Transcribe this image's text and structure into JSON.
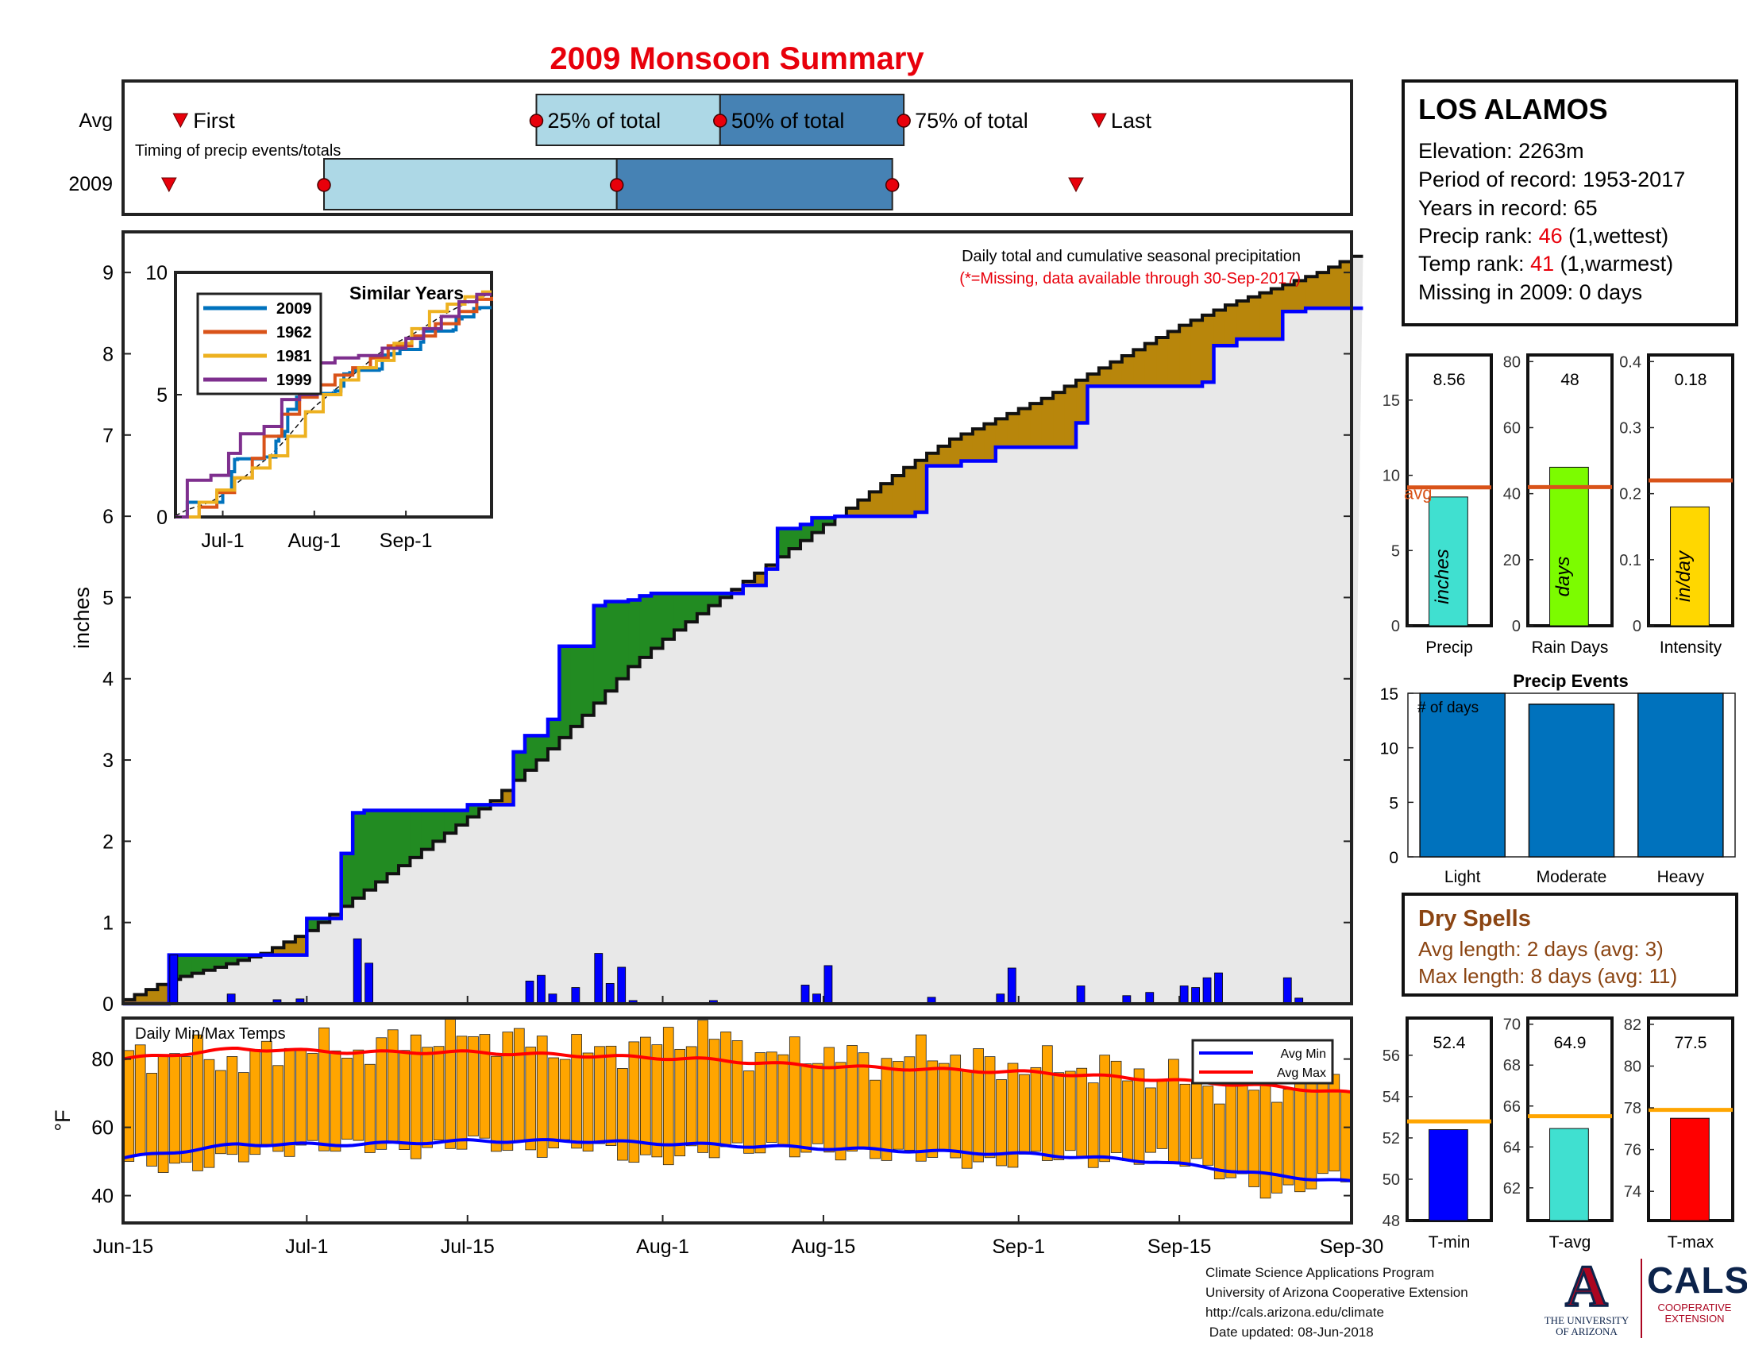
{
  "title": "2009 Monsoon Summary",
  "station": {
    "name": "LOS ALAMOS",
    "elevation": "Elevation: 2263m",
    "period": "Period of record: 1953-2017",
    "years": "Years in record: 65",
    "precip_rank_label": "Precip rank:",
    "precip_rank_value": "46",
    "precip_rank_note": "(1,wettest)",
    "temp_rank_label": "Temp rank:",
    "temp_rank_value": "41",
    "temp_rank_note": "(1,warmest)",
    "missing": "Missing in 2009: 0 days"
  },
  "timing": {
    "caption": "Timing of precip events/totals",
    "row_labels": [
      "Avg",
      "2009"
    ],
    "first_label": "First",
    "last_label": "Last",
    "q25_label": "25% of total",
    "q50_label": "50% of total",
    "q75_label": "75% of total",
    "avg": {
      "first": 5,
      "q25": 36,
      "q50": 52,
      "q75": 68,
      "last": 85
    },
    "y2009": {
      "first": 4,
      "q25": 17.5,
      "q50": 43,
      "q75": 67,
      "last": 83
    }
  },
  "main": {
    "title": "Daily total and cumulative seasonal precipitation",
    "subtitle": "(*=Missing, data available through 30-Sep-2017)",
    "ylabel": "inches",
    "ylim": [
      0,
      9.5
    ],
    "yticks": [
      "0",
      "1",
      "2",
      "3",
      "4",
      "5",
      "6",
      "7",
      "8",
      "9"
    ]
  },
  "temps": {
    "title": "Daily Min/Max Temps",
    "ylabel": "°F",
    "ylim": [
      32,
      92
    ],
    "yticks": [
      "40",
      "60",
      "80"
    ],
    "legend": [
      "Avg Min",
      "Avg Max"
    ]
  },
  "x_axis": {
    "ticks": [
      {
        "day": 0,
        "label": "Jun-15"
      },
      {
        "day": 16,
        "label": "Jul-1"
      },
      {
        "day": 30,
        "label": "Jul-15"
      },
      {
        "day": 47,
        "label": "Aug-1"
      },
      {
        "day": 61,
        "label": "Aug-15"
      },
      {
        "day": 78,
        "label": "Sep-1"
      },
      {
        "day": 92,
        "label": "Sep-15"
      },
      {
        "day": 107,
        "label": "Sep-30"
      }
    ]
  },
  "inset": {
    "title": "Similar Years",
    "xticks": [
      "Jul-1",
      "Aug-1",
      "Sep-1"
    ],
    "yticks": [
      "0",
      "5",
      "10"
    ],
    "series": [
      {
        "name": "2009",
        "color": "#0072bd"
      },
      {
        "name": "1962",
        "color": "#d95319"
      },
      {
        "name": "1981",
        "color": "#edb120"
      },
      {
        "name": "1999",
        "color": "#7e2f8e"
      }
    ]
  },
  "stats": {
    "precip": {
      "value": "8.56",
      "label": "Precip",
      "unit": "inches",
      "color": "#40e0d0",
      "val": 8.56,
      "avg": 9.2,
      "ylim": [
        0,
        18
      ],
      "ticks": [
        "0",
        "5",
        "10",
        "15"
      ],
      "avg_label": "avg"
    },
    "rain_days": {
      "value": "48",
      "label": "Rain Days",
      "unit": "days",
      "color": "#7cfc00",
      "val": 48,
      "avg": 42,
      "ylim": [
        0,
        82
      ],
      "ticks": [
        "0",
        "20",
        "40",
        "60",
        "80"
      ]
    },
    "intensity": {
      "value": "0.18",
      "label": "Intensity",
      "unit": "in/day",
      "color": "#ffd700",
      "val": 0.18,
      "avg": 0.22,
      "ylim": [
        0,
        0.41
      ],
      "ticks": [
        "0",
        "0.1",
        "0.2",
        "0.3",
        "0.4"
      ]
    }
  },
  "events": {
    "title": "Precip Events",
    "annotation": "# of days",
    "ylim": [
      0,
      15
    ],
    "ticks": [
      "0",
      "5",
      "10",
      "15"
    ],
    "categories": [
      "Light",
      "Moderate",
      "Heavy"
    ],
    "values": [
      15,
      14,
      15
    ]
  },
  "dry_spells": {
    "title": "Dry Spells",
    "avg_length": "Avg length: 2 days (avg: 3)",
    "max_length": "Max length: 8 days (avg: 11)"
  },
  "temp_stats": {
    "tmin": {
      "value": "52.4",
      "label": "T-min",
      "color": "#0000ff",
      "val": 52.4,
      "avg": 52.8,
      "ylim": [
        48,
        57.8
      ],
      "ticks": [
        "48",
        "50",
        "52",
        "54",
        "56"
      ]
    },
    "tavg": {
      "value": "64.9",
      "label": "T-avg",
      "color": "#40e0d0",
      "val": 64.9,
      "avg": 65.5,
      "ylim": [
        60.4,
        70.3
      ],
      "ticks": [
        "62",
        "64",
        "66",
        "68",
        "70"
      ]
    },
    "tmax": {
      "value": "77.5",
      "label": "T-max",
      "color": "#ff0000",
      "val": 77.5,
      "avg": 77.9,
      "ylim": [
        72.6,
        82.3
      ],
      "ticks": [
        "74",
        "76",
        "78",
        "80",
        "82"
      ]
    }
  },
  "footer": {
    "line1": "Climate Science Applications Program",
    "line2": "University of Arizona Cooperative Extension",
    "line3": "http://cals.arizona.edu/climate",
    "line4": " Date updated: 08-Jun-2018"
  },
  "logos": {
    "ua_mark": "A",
    "ua_line1": "THE UNIVERSITY",
    "ua_line2": "OF ARIZONA",
    "cals_mark": "CALS",
    "cals_line1": "COOPERATIVE",
    "cals_line2": "EXTENSION"
  },
  "colors": {
    "title": "#e8000b",
    "cumulative_2009": "#0000ff",
    "above_avg_fill": "#228b22",
    "below_avg_fill": "#b8860b",
    "avg_area": "#e8e8e8",
    "daily_bars": "#0000ff",
    "temp_bars": "#ffa500",
    "avg_min": "#0000ff",
    "avg_max": "#ff0000",
    "q_light": "#add8e6",
    "q_dark": "#4682b4",
    "avg_line": "#d95319",
    "event_bars": "#0072bd",
    "dry_spell_text": "#8b4513",
    "stat_avg_line": "#ffa500"
  },
  "chart_data": [
    {
      "type": "area",
      "title": "Daily total and cumulative seasonal precipitation",
      "ylabel": "inches",
      "x_unit": "days since Jun-15",
      "xlim": [
        0,
        107
      ],
      "ylim": [
        0,
        9.5
      ],
      "series": [
        {
          "name": "2009 cumulative",
          "x": [
            0,
            4,
            16,
            19,
            20,
            21,
            30,
            34,
            35,
            37,
            38,
            41,
            42,
            44,
            45,
            46,
            54,
            56,
            57,
            58,
            59,
            60,
            62,
            69,
            70,
            73,
            76,
            83,
            84,
            94,
            95,
            97,
            101,
            103,
            107
          ],
          "values": [
            0,
            0.6,
            1.05,
            1.85,
            2.35,
            2.38,
            2.45,
            3.1,
            3.3,
            3.5,
            4.4,
            4.9,
            4.95,
            4.97,
            5.02,
            5.05,
            5.15,
            5.35,
            5.85,
            5.85,
            5.9,
            5.98,
            6.0,
            6.05,
            6.62,
            6.68,
            6.85,
            7.15,
            7.6,
            7.65,
            8.1,
            8.18,
            8.52,
            8.56,
            8.56
          ]
        },
        {
          "name": "Average cumulative",
          "x": [
            0,
            4,
            8,
            12,
            16,
            20,
            24,
            28,
            32,
            36,
            40,
            44,
            48,
            52,
            56,
            60,
            64,
            68,
            72,
            76,
            80,
            84,
            88,
            92,
            96,
            100,
            104,
            107
          ],
          "values": [
            0.05,
            0.3,
            0.45,
            0.62,
            0.9,
            1.3,
            1.7,
            2.1,
            2.5,
            3.0,
            3.55,
            4.15,
            4.6,
            5.0,
            5.4,
            5.8,
            6.2,
            6.6,
            6.95,
            7.2,
            7.45,
            7.75,
            8.05,
            8.35,
            8.6,
            8.8,
            9.0,
            9.2
          ]
        },
        {
          "name": "2009 daily",
          "x": [
            4,
            9,
            13,
            15,
            20,
            21,
            35,
            36,
            37,
            39,
            41,
            42,
            43,
            44,
            51,
            59,
            60,
            61,
            70,
            76,
            77,
            83,
            87,
            89,
            92,
            93,
            94,
            95,
            101,
            102
          ],
          "values": [
            0.6,
            0.12,
            0.05,
            0.06,
            0.8,
            0.5,
            0.28,
            0.35,
            0.12,
            0.2,
            0.62,
            0.25,
            0.45,
            0.04,
            0.04,
            0.23,
            0.12,
            0.47,
            0.08,
            0.12,
            0.44,
            0.22,
            0.1,
            0.14,
            0.22,
            0.2,
            0.32,
            0.38,
            0.32,
            0.07
          ]
        }
      ]
    },
    {
      "type": "bar",
      "title": "Daily Min/Max Temps",
      "ylabel": "°F",
      "x_unit": "days since Jun-15",
      "ylim": [
        32,
        92
      ],
      "series": [
        {
          "name": "Daily Min",
          "x": [
            0,
            5,
            10,
            15,
            20,
            25,
            30,
            35,
            40,
            45,
            50,
            55,
            60,
            65,
            70,
            75,
            80,
            85,
            90,
            95,
            100,
            105
          ],
          "values": [
            50,
            48,
            52,
            54,
            55,
            53,
            56,
            53,
            55,
            50,
            53,
            54,
            53,
            52,
            52,
            49,
            52,
            50,
            52,
            47,
            40,
            46
          ]
        },
        {
          "name": "Daily Max",
          "x": [
            0,
            5,
            10,
            15,
            20,
            25,
            30,
            35,
            40,
            45,
            50,
            55,
            60,
            65,
            70,
            75,
            80,
            85,
            90,
            95,
            100,
            105
          ],
          "values": [
            80,
            82,
            79,
            84,
            82,
            86,
            87,
            85,
            82,
            84,
            88,
            81,
            82,
            79,
            82,
            78,
            78,
            77,
            75,
            72,
            72,
            76
          ]
        },
        {
          "name": "Avg Min",
          "x": [
            0,
            10,
            20,
            30,
            40,
            50,
            60,
            70,
            80,
            90,
            100,
            107
          ],
          "values": [
            51,
            55,
            55,
            56,
            56,
            55,
            54,
            53,
            52,
            50,
            46,
            44
          ]
        },
        {
          "name": "Avg Max",
          "x": [
            0,
            10,
            20,
            30,
            40,
            50,
            60,
            70,
            80,
            90,
            100,
            107
          ],
          "values": [
            80,
            83,
            82,
            82,
            81,
            80,
            78,
            77,
            76,
            74,
            72,
            70
          ]
        }
      ]
    }
  ]
}
